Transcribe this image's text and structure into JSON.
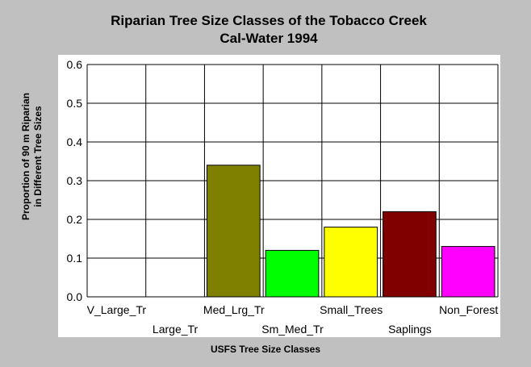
{
  "chart_data": {
    "type": "bar",
    "title": "Riparian Tree Size Classes of the Tobacco Creek",
    "subtitle": "Cal-Water 1994",
    "xlabel": "USFS Tree Size Classes",
    "ylabel_line1": "Proportion of 90 m Riparian",
    "ylabel_line2": "in Different Tree Sizes",
    "categories": [
      "V_Large_Tr",
      "Large_Tr",
      "Med_Lrg_Tr",
      "Sm_Med_Tr",
      "Small_Trees",
      "Saplings",
      "Non_Forest"
    ],
    "values": [
      0,
      0,
      0.34,
      0.12,
      0.18,
      0.22,
      0.13
    ],
    "colors": [
      "#808000",
      "#808000",
      "#808000",
      "#00ff00",
      "#ffff00",
      "#800000",
      "#ff00ff"
    ],
    "ylim": [
      0,
      0.6
    ],
    "yticks": [
      "0.0",
      "0.1",
      "0.2",
      "0.3",
      "0.4",
      "0.5",
      "0.6"
    ],
    "grid": true
  }
}
